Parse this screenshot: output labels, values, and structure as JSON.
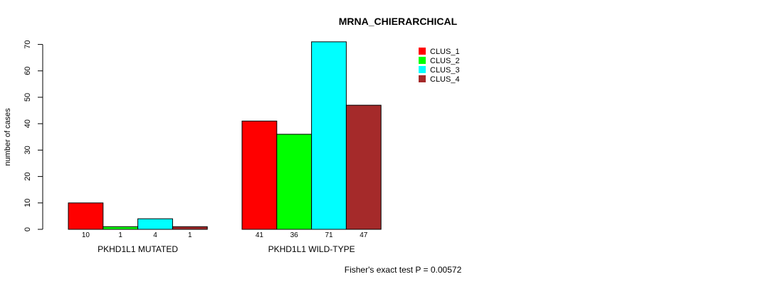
{
  "chart_data": {
    "type": "bar",
    "title": "MRNA_CHIERARCHICAL",
    "ylabel": "number of cases",
    "ylim": [
      0,
      70
    ],
    "yticks": [
      0,
      10,
      20,
      30,
      40,
      50,
      60,
      70
    ],
    "groups": [
      "PKHD1L1 MUTATED",
      "PKHD1L1 WILD-TYPE"
    ],
    "series": [
      {
        "name": "CLUS_1",
        "color": "#ff0000",
        "values": [
          10,
          41
        ]
      },
      {
        "name": "CLUS_2",
        "color": "#00ff00",
        "values": [
          1,
          36
        ]
      },
      {
        "name": "CLUS_3",
        "color": "#00ffff",
        "values": [
          4,
          71
        ]
      },
      {
        "name": "CLUS_4",
        "color": "#a52a2a",
        "values": [
          1,
          47
        ]
      }
    ],
    "legend_position": "top-right",
    "footnote": "Fisher's exact test P = 0.00572"
  }
}
